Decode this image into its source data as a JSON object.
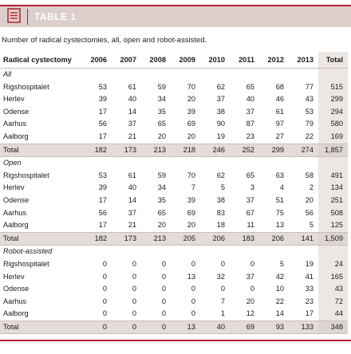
{
  "header": {
    "title": "TABLE 1",
    "icon": "table-icon",
    "accent_color": "#b41f30",
    "band_color": "#dccfcb"
  },
  "caption": "Number of radical cystectomies, all, open and robot-assisted.",
  "table": {
    "columns": [
      "Radical cystectomy",
      "2006",
      "2007",
      "2008",
      "2009",
      "2010",
      "2011",
      "2012",
      "2013",
      "Total"
    ],
    "sections": [
      {
        "label": "All",
        "rows": [
          {
            "name": "Rigshospitalet",
            "values": [
              "53",
              "61",
              "59",
              "70",
              "62",
              "65",
              "68",
              "77",
              "515"
            ]
          },
          {
            "name": "Herlev",
            "values": [
              "39",
              "40",
              "34",
              "20",
              "37",
              "40",
              "46",
              "43",
              "299"
            ]
          },
          {
            "name": "Odense",
            "values": [
              "17",
              "14",
              "35",
              "39",
              "38",
              "37",
              "61",
              "53",
              "294"
            ]
          },
          {
            "name": "Aarhus",
            "values": [
              "56",
              "37",
              "65",
              "69",
              "90",
              "87",
              "97",
              "79",
              "580"
            ]
          },
          {
            "name": "Aalborg",
            "values": [
              "17",
              "21",
              "20",
              "20",
              "19",
              "23",
              "27",
              "22",
              "169"
            ]
          }
        ],
        "total": {
          "name": "Total",
          "values": [
            "182",
            "173",
            "213",
            "218",
            "246",
            "252",
            "299",
            "274",
            "1,857"
          ]
        }
      },
      {
        "label": "Open",
        "rows": [
          {
            "name": "Rigshospitalet",
            "values": [
              "53",
              "61",
              "59",
              "70",
              "62",
              "65",
              "63",
              "58",
              "491"
            ]
          },
          {
            "name": "Herlev",
            "values": [
              "39",
              "40",
              "34",
              "7",
              "5",
              "3",
              "4",
              "2",
              "134"
            ]
          },
          {
            "name": "Odense",
            "values": [
              "17",
              "14",
              "35",
              "39",
              "38",
              "37",
              "51",
              "20",
              "251"
            ]
          },
          {
            "name": "Aarhus",
            "values": [
              "56",
              "37",
              "65",
              "69",
              "83",
              "67",
              "75",
              "56",
              "508"
            ]
          },
          {
            "name": "Aalborg",
            "values": [
              "17",
              "21",
              "20",
              "20",
              "18",
              "11",
              "13",
              "5",
              "125"
            ]
          }
        ],
        "total": {
          "name": "Total",
          "values": [
            "182",
            "173",
            "213",
            "205",
            "206",
            "183",
            "206",
            "141",
            "1,509"
          ]
        }
      },
      {
        "label": "Robot-assisted",
        "rows": [
          {
            "name": "Rigshospitalet",
            "values": [
              "0",
              "0",
              "0",
              "0",
              "0",
              "0",
              "5",
              "19",
              "24"
            ]
          },
          {
            "name": "Herlev",
            "values": [
              "0",
              "0",
              "0",
              "13",
              "32",
              "37",
              "42",
              "41",
              "165"
            ]
          },
          {
            "name": "Odense",
            "values": [
              "0",
              "0",
              "0",
              "0",
              "0",
              "0",
              "10",
              "33",
              "43"
            ]
          },
          {
            "name": "Aarhus",
            "values": [
              "0",
              "0",
              "0",
              "0",
              "7",
              "20",
              "22",
              "23",
              "72"
            ]
          },
          {
            "name": "Aalborg",
            "values": [
              "0",
              "0",
              "0",
              "0",
              "1",
              "12",
              "14",
              "17",
              "44"
            ]
          }
        ],
        "total": {
          "name": "Total",
          "values": [
            "0",
            "0",
            "0",
            "13",
            "40",
            "69",
            "93",
            "133",
            "348"
          ]
        }
      }
    ]
  }
}
